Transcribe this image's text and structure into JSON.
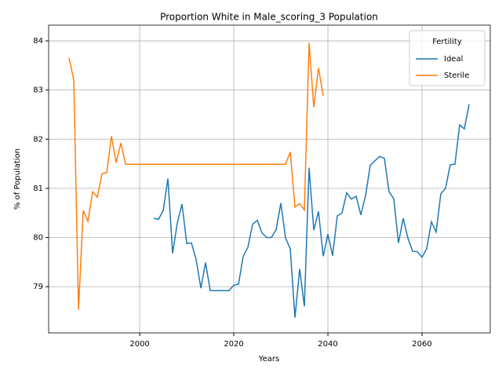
{
  "chart_data": {
    "type": "line",
    "title": "Proportion White in Male_scoring_3 Population",
    "x_label": "Years",
    "y_label": "% of Population",
    "x": [
      1985,
      1986,
      1987,
      1988,
      1989,
      1990,
      1991,
      1992,
      1993,
      1994,
      1995,
      1996,
      1997,
      1998,
      1999,
      2000,
      2001,
      2002,
      2003,
      2004,
      2005,
      2006,
      2007,
      2008,
      2009,
      2010,
      2011,
      2012,
      2013,
      2014,
      2015,
      2016,
      2017,
      2018,
      2019,
      2020,
      2021,
      2022,
      2023,
      2024,
      2025,
      2026,
      2027,
      2028,
      2029,
      2030,
      2031,
      2032,
      2033,
      2034,
      2035,
      2036,
      2037,
      2038,
      2039,
      2040,
      2041,
      2042,
      2043,
      2044,
      2045,
      2046,
      2047,
      2048,
      2049,
      2050,
      2051,
      2052,
      2053,
      2054,
      2055,
      2056,
      2057,
      2058,
      2059,
      2060,
      2061,
      2062,
      2063,
      2064,
      2065,
      2066,
      2067,
      2068,
      2069,
      2070
    ],
    "series": [
      {
        "name": "Ideal",
        "color": "#1f77b4",
        "values": [
          null,
          null,
          null,
          null,
          null,
          null,
          null,
          null,
          null,
          null,
          null,
          null,
          null,
          null,
          null,
          null,
          null,
          null,
          80.39,
          80.37,
          80.55,
          81.2,
          79.68,
          80.3,
          80.68,
          79.88,
          79.89,
          79.55,
          78.97,
          79.49,
          78.92,
          78.92,
          78.92,
          78.92,
          78.92,
          79.03,
          79.05,
          79.62,
          79.8,
          80.27,
          80.35,
          80.09,
          80.0,
          80.0,
          80.16,
          80.7,
          79.99,
          79.77,
          78.37,
          79.36,
          78.6,
          81.42,
          80.15,
          80.53,
          79.62,
          80.07,
          79.63,
          80.44,
          80.5,
          80.91,
          80.78,
          80.84,
          80.46,
          80.85,
          81.47,
          81.56,
          81.65,
          81.61,
          80.93,
          80.79,
          79.89,
          80.39,
          79.99,
          79.72,
          79.71,
          79.6,
          79.77,
          80.32,
          80.11,
          80.89,
          81.0,
          81.48,
          81.49,
          82.29,
          82.21,
          82.71
        ]
      },
      {
        "name": "Sterile",
        "color": "#ff7f0e",
        "values": [
          83.65,
          83.2,
          78.53,
          80.55,
          80.33,
          80.93,
          80.82,
          81.3,
          81.32,
          82.06,
          81.52,
          81.92,
          81.49,
          81.49,
          81.49,
          81.49,
          81.49,
          81.49,
          81.49,
          81.49,
          81.49,
          81.49,
          81.49,
          81.49,
          81.49,
          81.49,
          81.49,
          81.49,
          81.49,
          81.49,
          81.49,
          81.49,
          81.49,
          81.49,
          81.49,
          81.49,
          81.49,
          81.49,
          81.49,
          81.49,
          81.49,
          81.49,
          81.49,
          81.49,
          81.49,
          81.49,
          81.49,
          81.74,
          80.62,
          80.69,
          80.56,
          83.96,
          82.65,
          83.45,
          82.88,
          null,
          null,
          null,
          null,
          null,
          null,
          null,
          null,
          null,
          null,
          null,
          null,
          null,
          null,
          null,
          null,
          null,
          null,
          null,
          null,
          null,
          null,
          null,
          null,
          null,
          null,
          null,
          null,
          null,
          null,
          null
        ]
      }
    ],
    "legend_title": "Fertility",
    "legend": "upper right",
    "xlim": [
      1980.65,
      2074.5
    ],
    "xticks": [
      2000,
      2020,
      2040,
      2060
    ],
    "ylim": [
      78.06,
      84.32
    ],
    "yticks": [
      79,
      80,
      81,
      82,
      83,
      84
    ],
    "grid": true
  }
}
